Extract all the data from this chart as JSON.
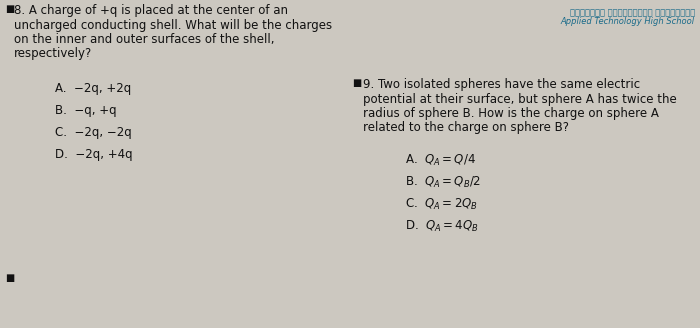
{
  "bg_color": "#ccc8c0",
  "header_line1": "التقنية التطبيقية الثانوية",
  "header_line2": "Applied Technology High School",
  "header_color": "#1a6b8a",
  "q8_question_lines": [
    "8. A charge of +q is placed at the center of an",
    "uncharged conducting shell. What will be the charges",
    "on the inner and outer surfaces of the shell,",
    "respectively?"
  ],
  "q8_options": [
    "A.  −2q, +2q",
    "B.  −q, +q",
    "C.  −2q, −2q",
    "D.  −2q, +4q"
  ],
  "q9_question_lines": [
    "9. Two isolated spheres have the same electric",
    "potential at their surface, but sphere A has twice the",
    "radius of sphere B. How is the charge on sphere A",
    "related to the charge on sphere B?"
  ],
  "q9_options": [
    "A.  $Q_A = Q/4$",
    "B.  $Q_A = Q_B/2$",
    "C.  $Q_A = 2Q_B$",
    "D.  $Q_A = 4Q_B$"
  ],
  "text_color": "#111111",
  "q_fontsize": 8.5,
  "opt_fontsize": 8.5,
  "hdr_fs1": 6.0,
  "hdr_fs2": 6.0
}
